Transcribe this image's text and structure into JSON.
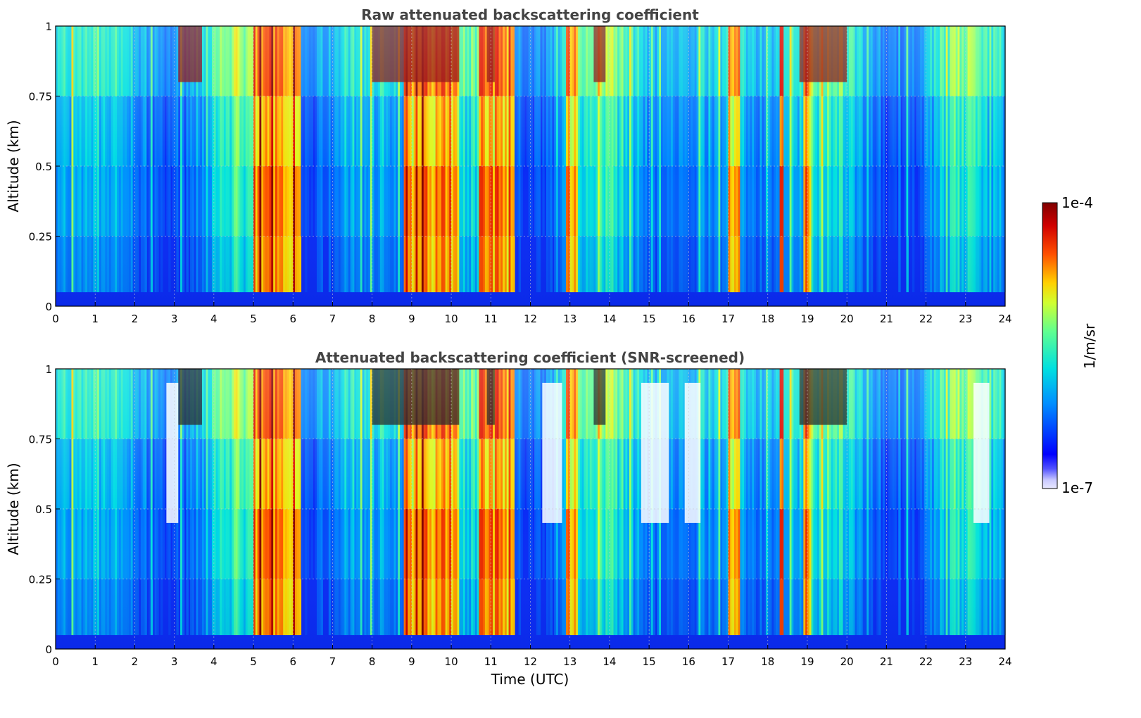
{
  "chart_data": [
    {
      "type": "heatmap",
      "title": "Raw attenuated backscattering coefficient",
      "xlabel": "",
      "ylabel": "Altitude (km)",
      "xlim": [
        0,
        24
      ],
      "ylim": [
        0,
        1
      ],
      "x_ticks": [
        0,
        1,
        2,
        3,
        4,
        5,
        6,
        7,
        8,
        9,
        10,
        11,
        12,
        13,
        14,
        15,
        16,
        17,
        18,
        19,
        20,
        21,
        22,
        23,
        24
      ],
      "y_ticks": [
        0,
        0.25,
        0.5,
        0.75,
        1
      ],
      "y_tick_labels": [
        "0",
        "0.25",
        "0.5",
        "0.75",
        "1"
      ],
      "grid": true,
      "colormap": "jet",
      "color_scale": "log",
      "bright_column_bands_utc": [
        [
          5.0,
          6.2
        ],
        [
          8.8,
          10.2
        ],
        [
          10.7,
          11.6
        ],
        [
          12.9,
          13.2
        ],
        [
          17.0,
          17.3
        ],
        [
          18.3,
          18.4
        ],
        [
          18.9,
          19.1
        ]
      ],
      "cloud_tops_dark_red_utc": [
        [
          3.1,
          3.7
        ],
        [
          8.0,
          10.2
        ],
        [
          10.9,
          11.1
        ],
        [
          13.6,
          13.9
        ],
        [
          18.8,
          20.0
        ]
      ],
      "screened": false
    },
    {
      "type": "heatmap",
      "title": "Attenuated backscattering coefficient (SNR-screened)",
      "xlabel": "Time (UTC)",
      "ylabel": "Altitude (km)",
      "xlim": [
        0,
        24
      ],
      "ylim": [
        0,
        1
      ],
      "x_ticks": [
        0,
        1,
        2,
        3,
        4,
        5,
        6,
        7,
        8,
        9,
        10,
        11,
        12,
        13,
        14,
        15,
        16,
        17,
        18,
        19,
        20,
        21,
        22,
        23,
        24
      ],
      "y_ticks": [
        0,
        0.25,
        0.5,
        0.75,
        1
      ],
      "y_tick_labels": [
        "0",
        "0.25",
        "0.5",
        "0.75",
        "1"
      ],
      "grid": true,
      "colormap": "jet",
      "color_scale": "log",
      "bright_column_bands_utc": [
        [
          5.0,
          6.2
        ],
        [
          8.8,
          10.2
        ],
        [
          10.7,
          11.6
        ],
        [
          12.9,
          13.2
        ],
        [
          17.0,
          17.3
        ],
        [
          18.3,
          18.4
        ],
        [
          18.9,
          19.1
        ]
      ],
      "screened_out_regions_utc": [
        [
          2.8,
          3.1
        ],
        [
          12.3,
          12.8
        ],
        [
          14.8,
          15.5
        ],
        [
          15.9,
          16.3
        ],
        [
          23.2,
          23.6
        ]
      ],
      "screened": true
    }
  ],
  "colorbar": {
    "label": "1/m/sr",
    "max_label": "1e-4",
    "min_label": "1e-7",
    "min": 1e-07,
    "max": 0.0001,
    "scale": "log"
  },
  "colors": {
    "background_low": "#0b2cf5",
    "missing": "#ffffff",
    "title": "#444444"
  }
}
